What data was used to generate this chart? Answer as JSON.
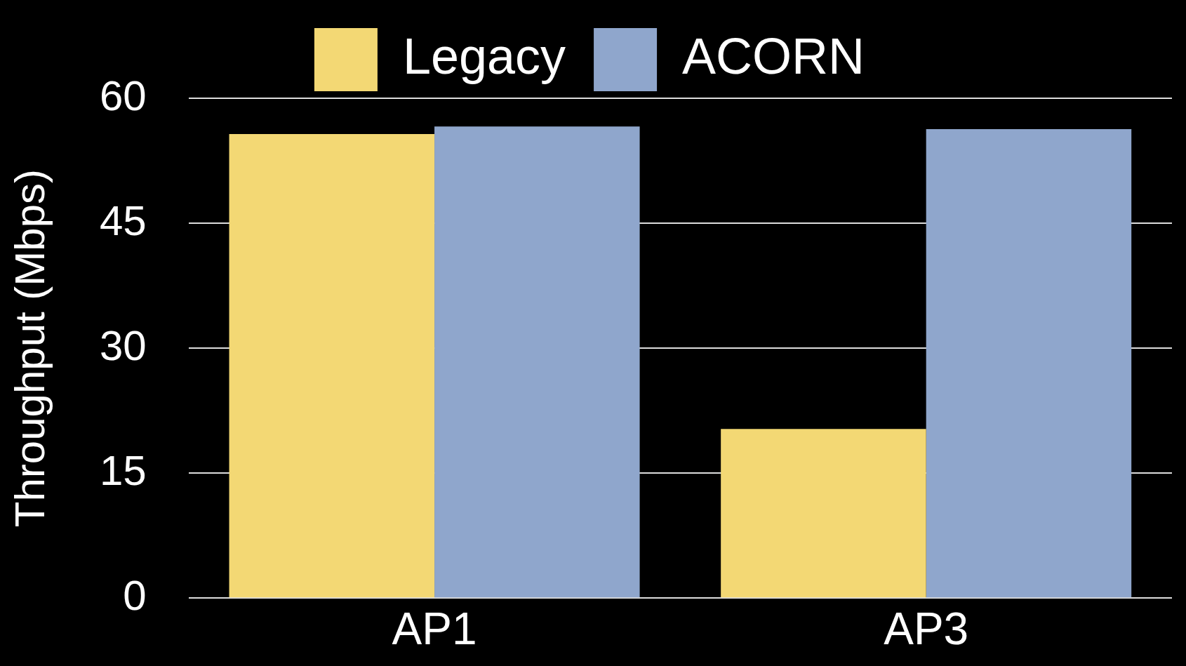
{
  "chart_data": {
    "type": "bar",
    "ylabel": "Throughput (Mbps)",
    "categories": [
      "AP1",
      "AP3"
    ],
    "series": [
      {
        "name": "Legacy",
        "color": "#f3d874",
        "values": [
          55.7,
          20.3
        ]
      },
      {
        "name": "ACORN",
        "color": "#8fa6cc",
        "values": [
          56.6,
          56.3
        ]
      }
    ],
    "ylim": [
      0,
      60
    ],
    "yticks": [
      0,
      15,
      30,
      45,
      60
    ],
    "grid": "y",
    "legend": "top"
  }
}
